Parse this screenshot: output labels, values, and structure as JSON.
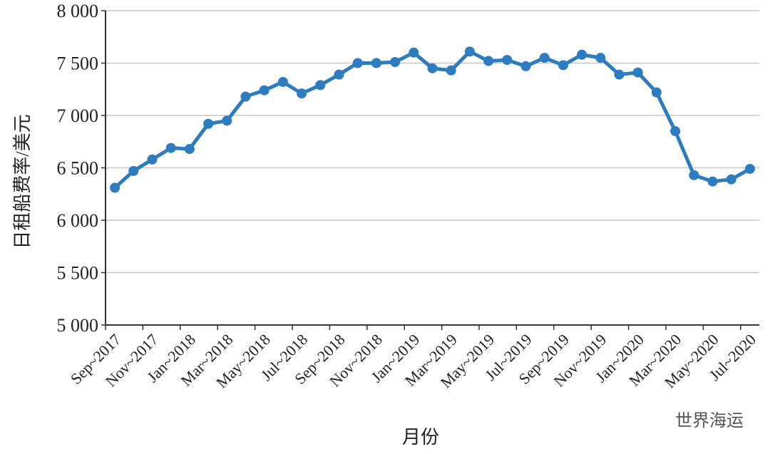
{
  "chart_data": {
    "type": "line",
    "y_label": "日租船费率/美元",
    "x_label": "月份",
    "watermark": "世界海运",
    "categories": [
      "Sep~2017",
      null,
      "Nov~2017",
      null,
      "Jan~2018",
      null,
      "Mar~2018",
      null,
      "May~2018",
      null,
      "Jul~2018",
      null,
      "Sep~2018",
      null,
      "Nov~2018",
      null,
      "Jan~2019",
      null,
      "Mar~2019",
      null,
      "May~2019",
      null,
      "Jul~2019",
      null,
      "Sep~2019",
      null,
      "Nov~2019",
      null,
      "Jan~2020",
      null,
      "Mar~2020",
      null,
      "May~2020",
      null,
      "Jul~2020"
    ],
    "series": [
      {
        "name": "日租船费率",
        "color": "#2e7cc0",
        "values": [
          6310,
          6470,
          6580,
          6690,
          6680,
          6920,
          6950,
          7180,
          7240,
          7320,
          7210,
          7290,
          7390,
          7500,
          7500,
          7510,
          7600,
          7450,
          7430,
          7610,
          7520,
          7530,
          7470,
          7550,
          7480,
          7580,
          7550,
          7390,
          7410,
          7220,
          6850,
          6430,
          6370,
          6390,
          6490
        ]
      }
    ],
    "ylim": [
      5000,
      8000
    ],
    "yticks": [
      {
        "value": 5000,
        "label": "5 000"
      },
      {
        "value": 5500,
        "label": "5 500"
      },
      {
        "value": 6000,
        "label": "6 000"
      },
      {
        "value": 6500,
        "label": "6 500"
      },
      {
        "value": 7000,
        "label": "7 000"
      },
      {
        "value": 7500,
        "label": "7 500"
      },
      {
        "value": 8000,
        "label": "8 000"
      }
    ],
    "grid": true
  }
}
